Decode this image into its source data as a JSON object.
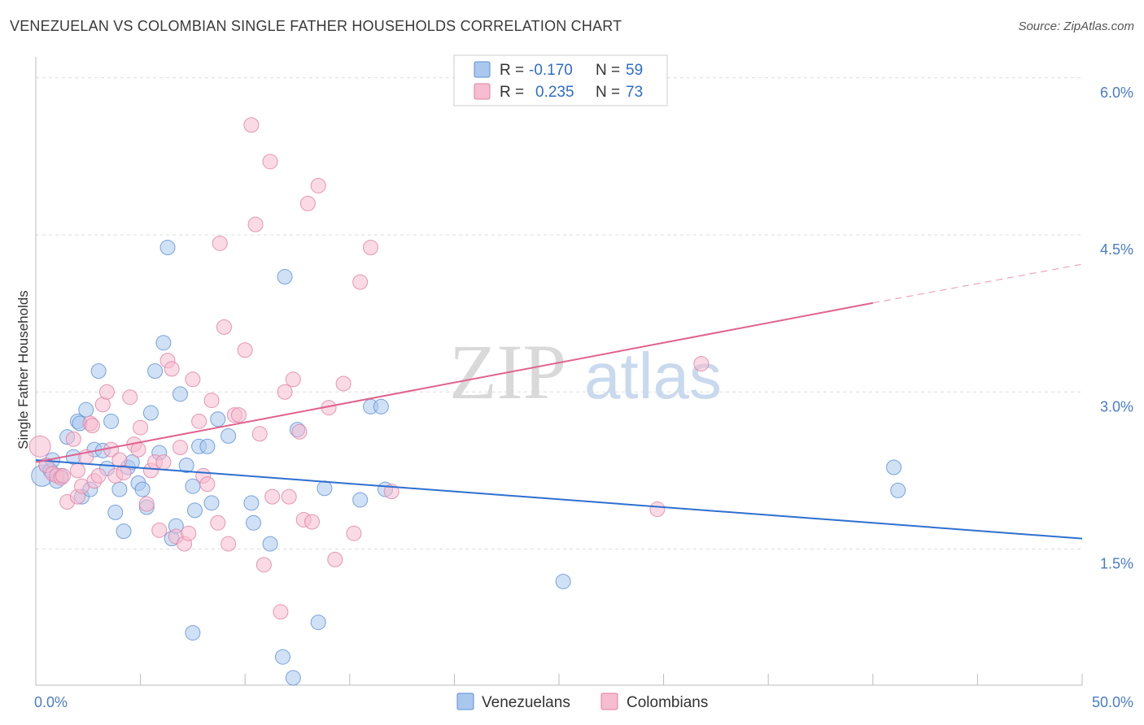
{
  "header": {
    "title": "VENEZUELAN VS COLOMBIAN SINGLE FATHER HOUSEHOLDS CORRELATION CHART",
    "source": "Source: ZipAtlas.com"
  },
  "watermark": {
    "zip": "ZIP",
    "atlas": "atlas"
  },
  "legend": {
    "venezuelans": {
      "r_label": "R =",
      "r_value": "-0.170",
      "n_label": "N =",
      "n_value": "59"
    },
    "colombians": {
      "r_label": "R =",
      "r_value": "0.235",
      "n_label": "N =",
      "n_value": "73"
    }
  },
  "bottom_legend": {
    "venezuelans": "Venezuelans",
    "colombians": "Colombians"
  },
  "colors": {
    "blue_fill": "#aac8ee",
    "blue_stroke": "#5b8fd6",
    "blue_line": "#2e6fcf",
    "pink_fill": "#f6bcd0",
    "pink_stroke": "#e07fa3",
    "pink_line": "#e0628f",
    "grid": "#dddddd",
    "axis_label": "#4a7cc9"
  },
  "chart_data": {
    "type": "scatter",
    "title": "VENEZUELAN VS COLOMBIAN SINGLE FATHER HOUSEHOLDS CORRELATION CHART",
    "xlabel": "",
    "ylabel": "Single Father Households",
    "xlim": [
      0,
      50
    ],
    "ylim": [
      0.2,
      6.2
    ],
    "x_tick_labels": [
      {
        "value": 0,
        "label": "0.0%"
      },
      {
        "value": 50,
        "label": "50.0%"
      }
    ],
    "y_tick_labels": [
      {
        "value": 1.5,
        "label": "1.5%"
      },
      {
        "value": 3.0,
        "label": "3.0%"
      },
      {
        "value": 4.5,
        "label": "4.5%"
      },
      {
        "value": 6.0,
        "label": "6.0%"
      }
    ],
    "series": [
      {
        "name": "Venezuelans",
        "color": "#aac8ee",
        "trend": {
          "x": [
            0,
            50
          ],
          "y": [
            2.35,
            1.6
          ],
          "dashed_from": null
        },
        "points": [
          [
            0.3,
            2.2
          ],
          [
            0.5,
            2.3
          ],
          [
            0.7,
            2.25
          ],
          [
            0.8,
            2.35
          ],
          [
            1.0,
            2.15
          ],
          [
            1.2,
            2.2
          ],
          [
            1.5,
            2.57
          ],
          [
            1.8,
            2.38
          ],
          [
            2.0,
            2.72
          ],
          [
            2.1,
            2.7
          ],
          [
            2.2,
            2.0
          ],
          [
            2.4,
            2.83
          ],
          [
            2.6,
            2.07
          ],
          [
            2.8,
            2.45
          ],
          [
            3.0,
            3.2
          ],
          [
            3.2,
            2.44
          ],
          [
            3.4,
            2.27
          ],
          [
            3.6,
            2.72
          ],
          [
            3.8,
            1.85
          ],
          [
            4.0,
            2.07
          ],
          [
            4.2,
            1.67
          ],
          [
            4.4,
            2.28
          ],
          [
            4.6,
            2.33
          ],
          [
            4.9,
            2.13
          ],
          [
            5.1,
            2.07
          ],
          [
            5.3,
            1.9
          ],
          [
            5.5,
            2.8
          ],
          [
            5.7,
            3.2
          ],
          [
            5.9,
            2.42
          ],
          [
            6.1,
            3.47
          ],
          [
            6.3,
            4.38
          ],
          [
            6.5,
            1.6
          ],
          [
            6.7,
            1.72
          ],
          [
            6.9,
            2.98
          ],
          [
            7.2,
            2.3
          ],
          [
            7.5,
            2.1
          ],
          [
            7.6,
            1.87
          ],
          [
            7.8,
            2.48
          ],
          [
            8.2,
            2.48
          ],
          [
            8.4,
            1.94
          ],
          [
            8.7,
            2.74
          ],
          [
            9.2,
            2.58
          ],
          [
            10.3,
            1.94
          ],
          [
            10.4,
            1.75
          ],
          [
            11.2,
            1.55
          ],
          [
            11.8,
            0.47
          ],
          [
            11.9,
            4.1
          ],
          [
            12.3,
            0.27
          ],
          [
            12.5,
            2.64
          ],
          [
            13.5,
            0.8
          ],
          [
            13.8,
            2.08
          ],
          [
            15.5,
            1.97
          ],
          [
            16.0,
            2.86
          ],
          [
            16.5,
            2.86
          ],
          [
            16.7,
            2.07
          ],
          [
            7.5,
            0.7
          ],
          [
            25.2,
            1.19
          ],
          [
            41.0,
            2.28
          ],
          [
            41.2,
            2.06
          ]
        ]
      },
      {
        "name": "Colombians",
        "color": "#f6bcd0",
        "trend": {
          "x": [
            0,
            40,
            50
          ],
          "y": [
            2.33,
            3.85,
            4.22
          ],
          "dashed_from": 40
        },
        "points": [
          [
            0.2,
            2.48
          ],
          [
            0.5,
            2.3
          ],
          [
            0.8,
            2.22
          ],
          [
            1.0,
            2.2
          ],
          [
            1.2,
            2.18
          ],
          [
            1.3,
            2.2
          ],
          [
            1.5,
            1.95
          ],
          [
            1.8,
            2.55
          ],
          [
            2.0,
            2.0
          ],
          [
            2.2,
            2.1
          ],
          [
            2.4,
            2.38
          ],
          [
            2.6,
            2.7
          ],
          [
            2.7,
            2.68
          ],
          [
            2.8,
            2.15
          ],
          [
            3.0,
            2.2
          ],
          [
            3.2,
            2.88
          ],
          [
            3.4,
            3.0
          ],
          [
            3.6,
            2.45
          ],
          [
            3.8,
            2.2
          ],
          [
            4.0,
            2.35
          ],
          [
            4.2,
            2.23
          ],
          [
            4.5,
            2.95
          ],
          [
            4.7,
            2.5
          ],
          [
            4.9,
            2.45
          ],
          [
            5.0,
            2.66
          ],
          [
            5.3,
            1.93
          ],
          [
            5.5,
            2.25
          ],
          [
            5.7,
            2.33
          ],
          [
            5.9,
            1.68
          ],
          [
            6.1,
            2.33
          ],
          [
            6.3,
            3.3
          ],
          [
            6.5,
            3.22
          ],
          [
            6.7,
            1.62
          ],
          [
            6.9,
            2.47
          ],
          [
            7.1,
            1.55
          ],
          [
            7.3,
            1.65
          ],
          [
            7.5,
            3.12
          ],
          [
            7.8,
            2.72
          ],
          [
            8.0,
            2.2
          ],
          [
            8.2,
            2.12
          ],
          [
            8.4,
            2.92
          ],
          [
            8.7,
            1.75
          ],
          [
            8.8,
            4.42
          ],
          [
            9.0,
            3.62
          ],
          [
            9.2,
            1.55
          ],
          [
            9.5,
            2.78
          ],
          [
            9.7,
            2.78
          ],
          [
            10.0,
            3.4
          ],
          [
            10.3,
            5.55
          ],
          [
            10.5,
            4.6
          ],
          [
            10.7,
            2.6
          ],
          [
            10.9,
            1.35
          ],
          [
            11.2,
            5.2
          ],
          [
            11.3,
            2.0
          ],
          [
            11.7,
            0.9
          ],
          [
            11.9,
            3.0
          ],
          [
            12.1,
            2.0
          ],
          [
            12.3,
            3.12
          ],
          [
            12.6,
            2.62
          ],
          [
            12.8,
            1.78
          ],
          [
            13.0,
            4.8
          ],
          [
            13.2,
            1.76
          ],
          [
            13.5,
            4.97
          ],
          [
            14.0,
            2.85
          ],
          [
            14.3,
            1.4
          ],
          [
            14.7,
            3.08
          ],
          [
            15.2,
            1.65
          ],
          [
            15.5,
            4.05
          ],
          [
            16.0,
            4.38
          ],
          [
            17.0,
            2.05
          ],
          [
            2.0,
            2.25
          ],
          [
            29.7,
            1.88
          ],
          [
            31.8,
            3.27
          ]
        ]
      }
    ]
  }
}
